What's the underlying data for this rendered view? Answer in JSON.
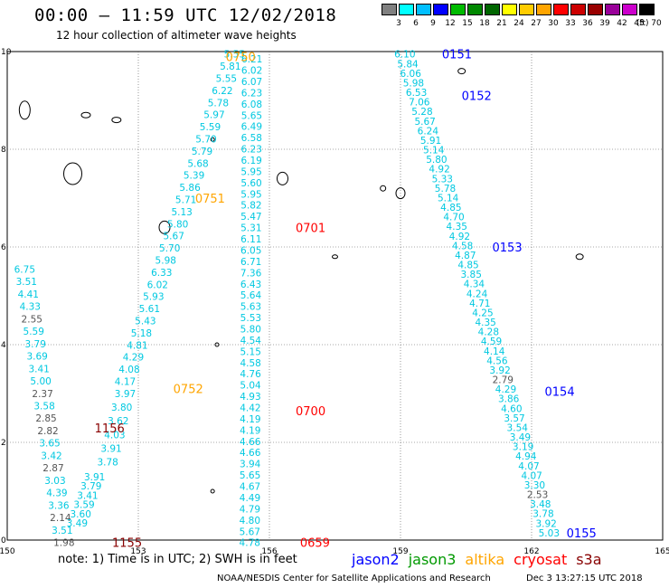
{
  "header": {
    "title": "00:00 – 11:59 UTC 12/02/2018",
    "subtitle": "12 hour collection of altimeter wave heights"
  },
  "color_scale": {
    "labels": [
      "3",
      "6",
      "9",
      "12",
      "15",
      "18",
      "21",
      "24",
      "27",
      "30",
      "33",
      "36",
      "39",
      "42",
      "45",
      "70"
    ],
    "colors": [
      "#808080",
      "#00ffff",
      "#00bfff",
      "#0000ff",
      "#00bb00",
      "#008800",
      "#006600",
      "#ffff00",
      "#ffcc00",
      "#ffa500",
      "#ff0000",
      "#cc0000",
      "#990000",
      "#990099",
      "#cc00cc",
      "#000000"
    ],
    "unit": "(ft)"
  },
  "map": {
    "x_ticks": [
      "150",
      "153",
      "156",
      "159",
      "162",
      "165"
    ],
    "y_ticks": [
      "0",
      "2",
      "4",
      "6",
      "8",
      "10"
    ],
    "track_time_labels": [
      {
        "text": "0750",
        "color": "#ffa500",
        "lon": 155.0,
        "lat": 9.9
      },
      {
        "text": "0751",
        "color": "#ffa500",
        "lon": 154.3,
        "lat": 7.0
      },
      {
        "text": "0752",
        "color": "#ffa500",
        "lon": 153.8,
        "lat": 3.1
      },
      {
        "text": "0701",
        "color": "#ff0000",
        "lon": 156.6,
        "lat": 6.4
      },
      {
        "text": "0700",
        "color": "#ff0000",
        "lon": 156.6,
        "lat": 2.65
      },
      {
        "text": "0659",
        "color": "#ff0000",
        "lon": 156.7,
        "lat": -0.05
      },
      {
        "text": "1156",
        "color": "#880000",
        "lon": 152.0,
        "lat": 2.3
      },
      {
        "text": "1155",
        "color": "#880000",
        "lon": 152.4,
        "lat": -0.05
      },
      {
        "text": "0151",
        "color": "#0000ff",
        "lon": 159.95,
        "lat": 9.95
      },
      {
        "text": "0152",
        "color": "#0000ff",
        "lon": 160.4,
        "lat": 9.1
      },
      {
        "text": "0153",
        "color": "#0000ff",
        "lon": 161.1,
        "lat": 6.0
      },
      {
        "text": "0154",
        "color": "#0000ff",
        "lon": 162.3,
        "lat": 3.05
      },
      {
        "text": "0155",
        "color": "#0000ff",
        "lon": 162.8,
        "lat": 0.15
      }
    ],
    "tracks": [
      {
        "name": "altika",
        "lon0": 155.2,
        "lat0": 9.95,
        "lon1": 152.7,
        "lat1": 3.25,
        "values": [
          "5.55",
          "5.81",
          "5.55",
          "6.22",
          "5.78",
          "5.97",
          "5.59",
          "5.70",
          "5.79",
          "5.68",
          "5.39",
          "5.86",
          "5.71",
          "5.13",
          "5.80",
          "5.67",
          "5.70",
          "5.98",
          "6.33",
          "6.02",
          "5.93",
          "5.61",
          "5.43",
          "5.18",
          "4.81",
          "4.29",
          "4.08",
          "4.17"
        ]
      },
      {
        "name": "altika-a",
        "lon0": 152.7,
        "lat0": 3.0,
        "lon1": 152.3,
        "lat1": 1.6,
        "values": [
          "3.97",
          "3.80",
          "3.62",
          "4.03",
          "3.91",
          "3.78"
        ]
      },
      {
        "name": "cryosat-n",
        "lon0": 155.6,
        "lat0": 9.85,
        "lon1": 155.55,
        "lat1": -0.05,
        "values": [
          "6.21",
          "6.02",
          "6.07",
          "6.23",
          "6.08",
          "5.65",
          "6.49",
          "6.58",
          "6.23",
          "6.19",
          "5.95",
          "5.60",
          "5.95",
          "5.82",
          "5.47",
          "5.31",
          "6.11",
          "6.05",
          "6.71",
          "7.36",
          "6.43",
          "5.64",
          "5.63",
          "5.53",
          "5.80",
          "4.54",
          "5.15",
          "4.58",
          "4.76",
          "5.04",
          "4.93",
          "4.42",
          "4.19",
          "4.19",
          "4.66",
          "4.66",
          "3.94",
          "5.65",
          "4.67",
          "4.49",
          "4.79",
          "4.80",
          "5.67",
          "4.78"
        ]
      },
      {
        "name": "s3a",
        "lon0": 150.4,
        "lat0": 5.55,
        "lon1": 151.3,
        "lat1": -0.05,
        "values": [
          "6.75",
          "3.51",
          "4.41",
          "4.33",
          "2.55",
          "5.59",
          "3.79",
          "3.69",
          "3.41",
          "5.00",
          "2.37",
          "3.58",
          "2.85",
          "2.82",
          "3.65",
          "3.42",
          "2.87",
          "3.03",
          "4.39",
          "3.36",
          "2.14",
          "3.51",
          "1.98"
        ]
      },
      {
        "name": "s3a-b",
        "lon0": 152.0,
        "lat0": 1.3,
        "lon1": 151.6,
        "lat1": 0.35,
        "values": [
          "3.91",
          "3.79",
          "3.41",
          "3.59",
          "3.60",
          "3.49"
        ]
      },
      {
        "name": "jason2",
        "lon0": 159.1,
        "lat0": 9.95,
        "lon1": 162.4,
        "lat1": 0.15,
        "values": [
          "6.10",
          "5.84",
          "6.06",
          "5.98",
          "6.53",
          "7.06",
          "5.28",
          "5.67",
          "6.24",
          "5.91",
          "5.14",
          "5.80",
          "4.92",
          "5.33",
          "5.78",
          "5.14",
          "4.85",
          "4.70",
          "4.35",
          "4.92",
          "4.58",
          "4.87",
          "4.85",
          "3.85",
          "4.34",
          "4.24",
          "4.71",
          "4.25",
          "4.35",
          "4.28",
          "4.59",
          "4.14",
          "4.56",
          "3.92",
          "2.79",
          "4.29",
          "3.86",
          "4.60",
          "3.57",
          "3.54",
          "3.49",
          "3.19",
          "4.94",
          "4.07",
          "4.07",
          "3.30",
          "2.53",
          "3.48",
          "3.78",
          "3.92",
          "5.03"
        ]
      }
    ]
  },
  "note": "note:  1) Time is in UTC;  2) SWH is in feet",
  "satellites": [
    {
      "label": "jason2",
      "color": "#0000ff"
    },
    {
      "label": "jason3",
      "color": "#009900"
    },
    {
      "label": "altika",
      "color": "#ffa500"
    },
    {
      "label": "cryosat",
      "color": "#ff0000"
    },
    {
      "label": "s3a",
      "color": "#880000"
    }
  ],
  "footer": "NOAA/NESDIS Center for Satellite Applications and Research",
  "footer_date": "Dec  3 13:27:15 UTC 2018"
}
